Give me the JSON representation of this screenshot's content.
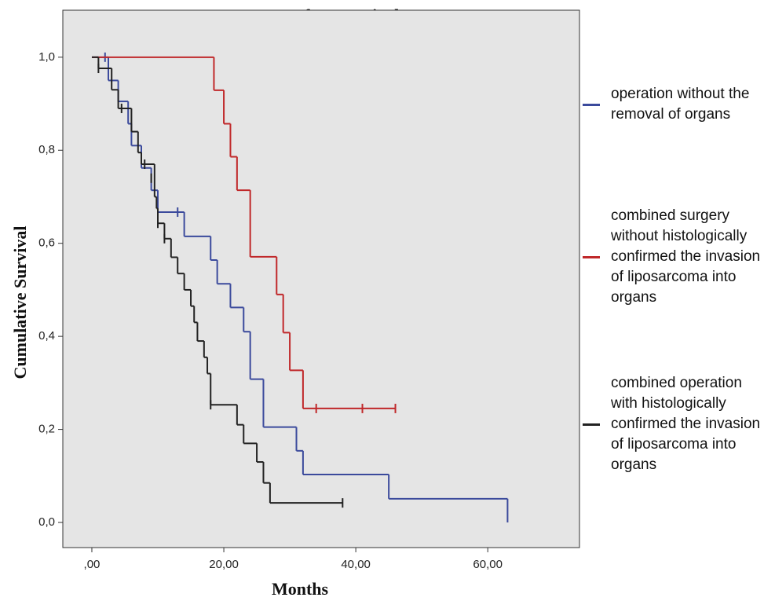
{
  "chart_data": {
    "type": "step",
    "title": "Recurrence-free Survival",
    "x_label": "Months",
    "y_label": "Cumulative Survival",
    "xlim": [
      -4.4,
      73.9
    ],
    "ylim": [
      -0.054,
      1.101
    ],
    "xticks": [
      {
        "value": 0,
        "label": ",00"
      },
      {
        "value": 20,
        "label": "20,00"
      },
      {
        "value": 40,
        "label": "40,00"
      },
      {
        "value": 60,
        "label": "60,00"
      }
    ],
    "yticks": [
      {
        "value": 0,
        "label": "0,0"
      },
      {
        "value": 0.2,
        "label": "0,2"
      },
      {
        "value": 0.4,
        "label": "0,4"
      },
      {
        "value": 0.6,
        "label": "0,6"
      },
      {
        "value": 0.8,
        "label": "0,8"
      },
      {
        "value": 1,
        "label": "1,0"
      }
    ],
    "series": [
      {
        "name": "operation without the removal of organs",
        "color": "#3b4a9c",
        "x": [
          0,
          2.5,
          4,
          5.5,
          6,
          7.5,
          9,
          10,
          14,
          18,
          19,
          21,
          23,
          24,
          26,
          31,
          32,
          45,
          63
        ],
        "values": [
          1,
          0.95,
          0.905,
          0.857,
          0.81,
          0.762,
          0.714,
          0.667,
          0.615,
          0.564,
          0.513,
          0.462,
          0.41,
          0.308,
          0.205,
          0.154,
          0.103,
          0.051,
          0
        ],
        "censored_x": [
          2,
          13
        ],
        "censored_values": [
          1,
          0.667
        ]
      },
      {
        "name": "combined surgery without histologically confirmed the invasion of liposarcoma into organs",
        "color": "#c0282a",
        "x": [
          0,
          18.5,
          20,
          21,
          22,
          24,
          28,
          29,
          30,
          32
        ],
        "values": [
          1,
          0.929,
          0.857,
          0.786,
          0.714,
          0.571,
          0.49,
          0.408,
          0.327,
          0.245
        ],
        "censored_x": [
          34,
          41,
          46
        ],
        "censored_values": [
          0.245,
          0.245,
          0.245
        ]
      },
      {
        "name": "combined operation with histologically confirmed the invasion of liposarcoma into organs",
        "color": "#222222",
        "x": [
          0,
          1,
          3,
          4,
          6,
          7,
          7.5,
          9.5,
          9.8,
          10,
          11,
          12,
          13,
          14,
          15,
          15.5,
          16,
          17,
          17.5,
          18,
          22,
          23,
          25,
          26,
          27
        ],
        "values": [
          1,
          0.976,
          0.93,
          0.89,
          0.84,
          0.795,
          0.77,
          0.7,
          0.675,
          0.643,
          0.61,
          0.57,
          0.535,
          0.5,
          0.465,
          0.43,
          0.39,
          0.355,
          0.32,
          0.253,
          0.21,
          0.17,
          0.13,
          0.085,
          0.042
        ],
        "censored_x": [
          1,
          4.5,
          8,
          9,
          10,
          11,
          18,
          38
        ],
        "censored_values": [
          0.976,
          0.89,
          0.77,
          0.74,
          0.643,
          0.61,
          0.253,
          0.042
        ]
      }
    ]
  }
}
